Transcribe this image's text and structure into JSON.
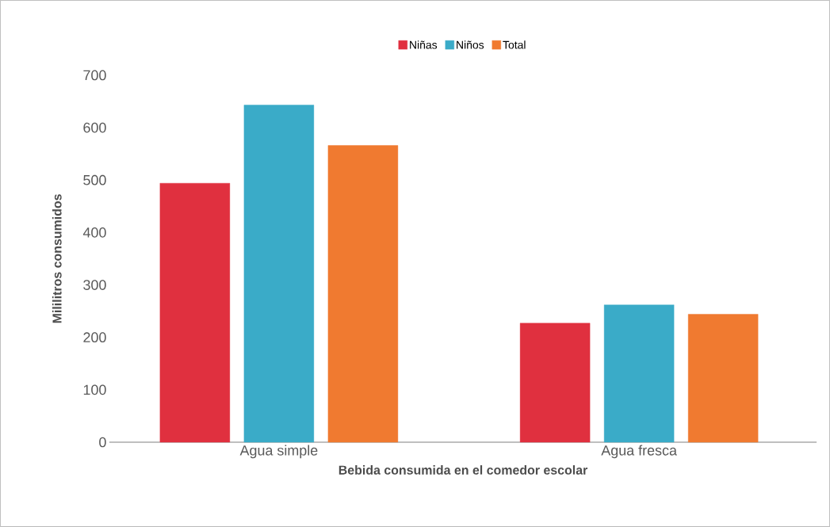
{
  "chart_data": {
    "type": "bar",
    "xlabel": "Bebida consumida en  el comedor escolar",
    "ylabel": "Mililitros consumidos",
    "categories": [
      "Agua simple",
      "Agua fresca"
    ],
    "series": [
      {
        "name": "Niñas",
        "color": "#e0303f",
        "values": [
          494,
          227
        ]
      },
      {
        "name": "Niños",
        "color": "#3aabc8",
        "values": [
          643,
          262
        ]
      },
      {
        "name": "Total",
        "color": "#f07a30",
        "values": [
          566,
          244
        ]
      }
    ],
    "ylim": [
      0,
      700
    ],
    "yticks": [
      0,
      100,
      200,
      300,
      400,
      500,
      600,
      700
    ],
    "legend": "top"
  }
}
